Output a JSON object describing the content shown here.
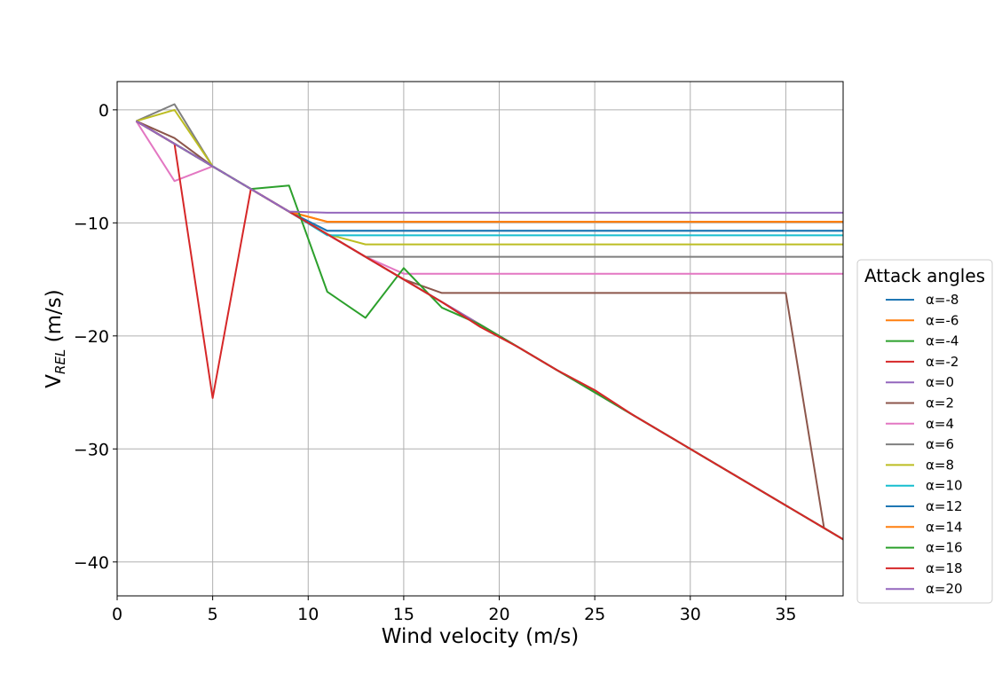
{
  "chart_data": {
    "type": "line",
    "xlabel": "Wind velocity (m/s)",
    "ylabel": {
      "main": "V",
      "sub": "REL",
      "unit": " (m/s)"
    },
    "xlim": [
      0,
      38
    ],
    "ylim": [
      -43,
      2.5
    ],
    "xticks": [
      0,
      5,
      10,
      15,
      20,
      25,
      30,
      35
    ],
    "yticks": [
      0,
      -10,
      -20,
      -30,
      -40
    ],
    "grid": true,
    "legend": {
      "title": "Attack angles",
      "placement": "outside-right"
    },
    "series": [
      {
        "name": "α=-8",
        "color": "#1f77b4",
        "points": [
          [
            1,
            -1
          ],
          [
            3,
            -3
          ],
          [
            5,
            -5
          ],
          [
            7,
            -7
          ],
          [
            9,
            -9
          ],
          [
            11,
            -10.7
          ],
          [
            38,
            -10.7
          ]
        ]
      },
      {
        "name": "α=-6",
        "color": "#ff7f0e",
        "points": [
          [
            1,
            -1
          ],
          [
            3,
            -3
          ],
          [
            5,
            -5
          ],
          [
            7,
            -7
          ],
          [
            9,
            -9
          ],
          [
            11,
            -9.9
          ],
          [
            38,
            -9.9
          ]
        ]
      },
      {
        "name": "α=-4",
        "color": "#2ca02c",
        "points": [
          [
            1,
            -1
          ],
          [
            3,
            -3
          ],
          [
            5,
            -5
          ],
          [
            7,
            -7
          ],
          [
            9,
            -9
          ],
          [
            11,
            -11
          ],
          [
            13,
            -13
          ],
          [
            15,
            -15
          ],
          [
            17,
            -17
          ],
          [
            19,
            -19
          ],
          [
            21,
            -21
          ],
          [
            23,
            -23
          ],
          [
            25,
            -25
          ],
          [
            27,
            -27
          ],
          [
            29,
            -29
          ],
          [
            31,
            -31
          ],
          [
            33,
            -33
          ],
          [
            35,
            -35
          ],
          [
            37,
            -37
          ],
          [
            38,
            -38
          ]
        ]
      },
      {
        "name": "α=-2",
        "color": "#d62728",
        "points": [
          [
            1,
            -1
          ],
          [
            3,
            -3
          ],
          [
            5,
            -5
          ],
          [
            7,
            -7
          ],
          [
            9,
            -9
          ],
          [
            11,
            -11
          ],
          [
            13,
            -13
          ],
          [
            15,
            -15
          ],
          [
            17,
            -17
          ],
          [
            19,
            -19
          ],
          [
            21,
            -21
          ],
          [
            23,
            -23
          ],
          [
            25,
            -25
          ],
          [
            27,
            -27
          ],
          [
            29,
            -29
          ],
          [
            31,
            -31
          ],
          [
            33,
            -33
          ],
          [
            35,
            -35
          ],
          [
            37,
            -37
          ],
          [
            38,
            -38
          ]
        ]
      },
      {
        "name": "α=0",
        "color": "#9467bd",
        "points": [
          [
            1,
            -1
          ],
          [
            3,
            -3
          ],
          [
            5,
            -5
          ],
          [
            7,
            -7
          ],
          [
            9,
            -9
          ],
          [
            11,
            -11
          ],
          [
            13,
            -13
          ],
          [
            15,
            -15
          ],
          [
            17,
            -17
          ],
          [
            19,
            -19
          ],
          [
            21,
            -21
          ],
          [
            23,
            -23
          ],
          [
            25,
            -25
          ],
          [
            27,
            -27
          ],
          [
            29,
            -29
          ],
          [
            31,
            -31
          ],
          [
            33,
            -33
          ],
          [
            35,
            -35
          ],
          [
            37,
            -37
          ],
          [
            38,
            -38
          ]
        ]
      },
      {
        "name": "α=2",
        "color": "#8c564b",
        "points": [
          [
            1,
            -1
          ],
          [
            3,
            -2.5
          ],
          [
            5,
            -5
          ],
          [
            7,
            -7
          ],
          [
            9,
            -9
          ],
          [
            11,
            -11
          ],
          [
            13,
            -13
          ],
          [
            15,
            -15
          ],
          [
            17,
            -16.2
          ],
          [
            35,
            -16.2
          ],
          [
            37,
            -37
          ],
          [
            38,
            -38
          ]
        ]
      },
      {
        "name": "α=4",
        "color": "#e377c2",
        "points": [
          [
            1,
            -1
          ],
          [
            3,
            -6.3
          ],
          [
            5,
            -5
          ],
          [
            7,
            -7
          ],
          [
            9,
            -9
          ],
          [
            11,
            -11
          ],
          [
            13,
            -13
          ],
          [
            15,
            -14.5
          ],
          [
            38,
            -14.5
          ]
        ]
      },
      {
        "name": "α=6",
        "color": "#7f7f7f",
        "points": [
          [
            1,
            -1
          ],
          [
            3,
            0.5
          ],
          [
            5,
            -5
          ],
          [
            7,
            -7
          ],
          [
            9,
            -9
          ],
          [
            11,
            -11
          ],
          [
            13,
            -13
          ],
          [
            38,
            -13
          ]
        ]
      },
      {
        "name": "α=8",
        "color": "#bcbd22",
        "points": [
          [
            1,
            -1
          ],
          [
            3,
            0
          ],
          [
            5,
            -5
          ],
          [
            7,
            -7
          ],
          [
            9,
            -9
          ],
          [
            11,
            -11
          ],
          [
            13,
            -11.9
          ],
          [
            38,
            -11.9
          ]
        ]
      },
      {
        "name": "α=10",
        "color": "#17becf",
        "points": [
          [
            1,
            -1
          ],
          [
            3,
            -3
          ],
          [
            5,
            -5
          ],
          [
            7,
            -7
          ],
          [
            9,
            -9
          ],
          [
            11,
            -11.1
          ],
          [
            38,
            -11.1
          ]
        ]
      },
      {
        "name": "α=12",
        "color": "#1f77b4",
        "points": [
          [
            1,
            -1
          ],
          [
            3,
            -3
          ],
          [
            5,
            -5
          ],
          [
            7,
            -7
          ],
          [
            9,
            -9
          ],
          [
            11,
            -10.7
          ],
          [
            38,
            -10.7
          ]
        ]
      },
      {
        "name": "α=14",
        "color": "#ff7f0e",
        "points": [
          [
            1,
            -1
          ],
          [
            3,
            -3
          ],
          [
            5,
            -5
          ],
          [
            7,
            -7
          ],
          [
            9,
            -9
          ],
          [
            11,
            -9.9
          ],
          [
            38,
            -9.9
          ]
        ]
      },
      {
        "name": "α=16",
        "color": "#2ca02c",
        "points": [
          [
            1,
            -1
          ],
          [
            3,
            -3
          ],
          [
            5,
            -5
          ],
          [
            7,
            -7
          ],
          [
            9,
            -6.7
          ],
          [
            11,
            -16.1
          ],
          [
            13,
            -18.4
          ],
          [
            15,
            -14
          ],
          [
            17,
            -17.5
          ],
          [
            19,
            -19
          ],
          [
            21,
            -21
          ],
          [
            23,
            -23
          ],
          [
            25,
            -25
          ],
          [
            27,
            -27
          ],
          [
            29,
            -29
          ],
          [
            31,
            -31
          ],
          [
            33,
            -33
          ],
          [
            35,
            -35
          ],
          [
            37,
            -37
          ],
          [
            38,
            -38
          ]
        ]
      },
      {
        "name": "α=18",
        "color": "#d62728",
        "points": [
          [
            1,
            -1
          ],
          [
            3,
            -3
          ],
          [
            5,
            -25.5
          ],
          [
            7,
            -7
          ],
          [
            9,
            -9
          ],
          [
            11,
            -11
          ],
          [
            13,
            -13
          ],
          [
            15,
            -15
          ],
          [
            17,
            -17
          ],
          [
            19,
            -19.2
          ],
          [
            21,
            -21
          ],
          [
            23,
            -23
          ],
          [
            25,
            -24.8
          ],
          [
            27,
            -27
          ],
          [
            29,
            -29
          ],
          [
            31,
            -31
          ],
          [
            33,
            -33
          ],
          [
            35,
            -35
          ],
          [
            37,
            -37
          ],
          [
            38,
            -38
          ]
        ]
      },
      {
        "name": "α=20",
        "color": "#9467bd",
        "points": [
          [
            1,
            -1
          ],
          [
            3,
            -3
          ],
          [
            5,
            -5
          ],
          [
            7,
            -7
          ],
          [
            9,
            -9
          ],
          [
            11,
            -9.1
          ],
          [
            38,
            -9.1
          ]
        ]
      }
    ]
  }
}
